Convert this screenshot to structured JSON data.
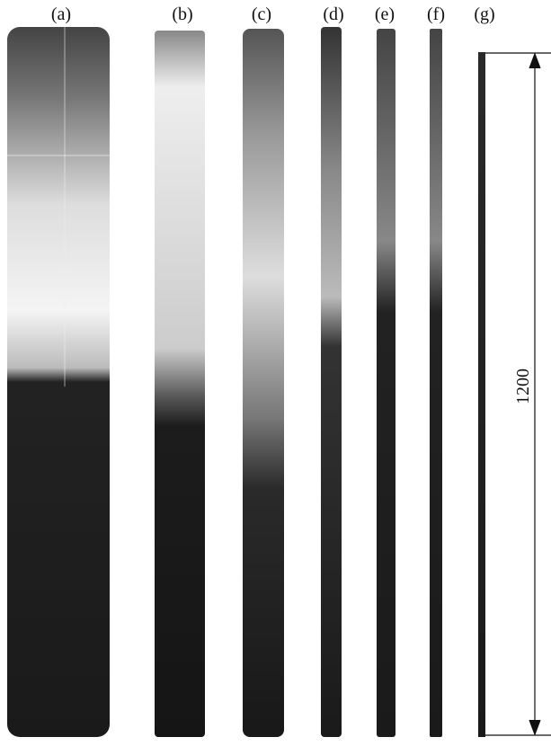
{
  "panels": [
    {
      "label": "(a)"
    },
    {
      "label": "(b)"
    },
    {
      "label": "(c)"
    },
    {
      "label": "(d)"
    },
    {
      "label": "(e)"
    },
    {
      "label": "(f)"
    },
    {
      "label": "(g)"
    }
  ],
  "dimension": {
    "label": "1200"
  }
}
